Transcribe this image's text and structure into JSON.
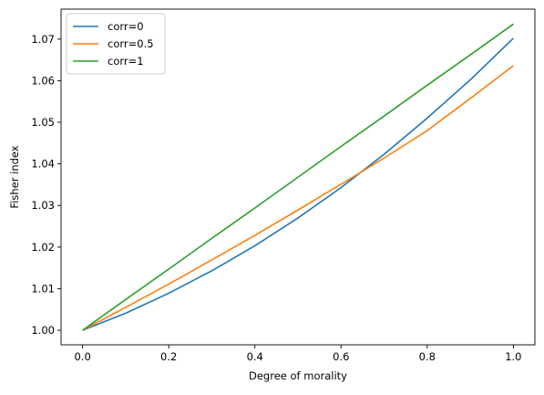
{
  "chart_data": {
    "type": "line",
    "title": "",
    "xlabel": "Degree of morality",
    "ylabel": "Fisher index",
    "xlim": [
      -0.05,
      1.05
    ],
    "ylim": [
      0.9965,
      1.0772
    ],
    "x_ticks": [
      0.0,
      0.2,
      0.4,
      0.6,
      0.8,
      1.0
    ],
    "x_tick_labels": [
      "0.0",
      "0.2",
      "0.4",
      "0.6",
      "0.8",
      "1.0"
    ],
    "y_ticks": [
      1.0,
      1.01,
      1.02,
      1.03,
      1.04,
      1.05,
      1.06,
      1.07
    ],
    "y_tick_labels": [
      "1.00",
      "1.01",
      "1.02",
      "1.03",
      "1.04",
      "1.05",
      "1.06",
      "1.07"
    ],
    "grid": false,
    "legend_position": "top-left",
    "x": [
      0.0,
      0.1,
      0.2,
      0.3,
      0.4,
      0.5,
      0.6,
      0.7,
      0.8,
      0.9,
      1.0
    ],
    "series": [
      {
        "name": "corr=0",
        "color": "#1f77b4",
        "values": [
          1.0,
          1.0041,
          1.0089,
          1.0143,
          1.0203,
          1.027,
          1.0343,
          1.0423,
          1.051,
          1.0602,
          1.0702
        ]
      },
      {
        "name": "corr=0.5",
        "color": "#ff7f0e",
        "values": [
          1.0,
          1.0055,
          1.0111,
          1.0169,
          1.0228,
          1.0289,
          1.0351,
          1.0414,
          1.048,
          1.0557,
          1.0636
        ]
      },
      {
        "name": "corr=1",
        "color": "#2ca02c",
        "values": [
          1.0,
          1.0074,
          1.0147,
          1.0221,
          1.0294,
          1.0368,
          1.0442,
          1.0515,
          1.0589,
          1.0662,
          1.0736
        ]
      }
    ]
  }
}
